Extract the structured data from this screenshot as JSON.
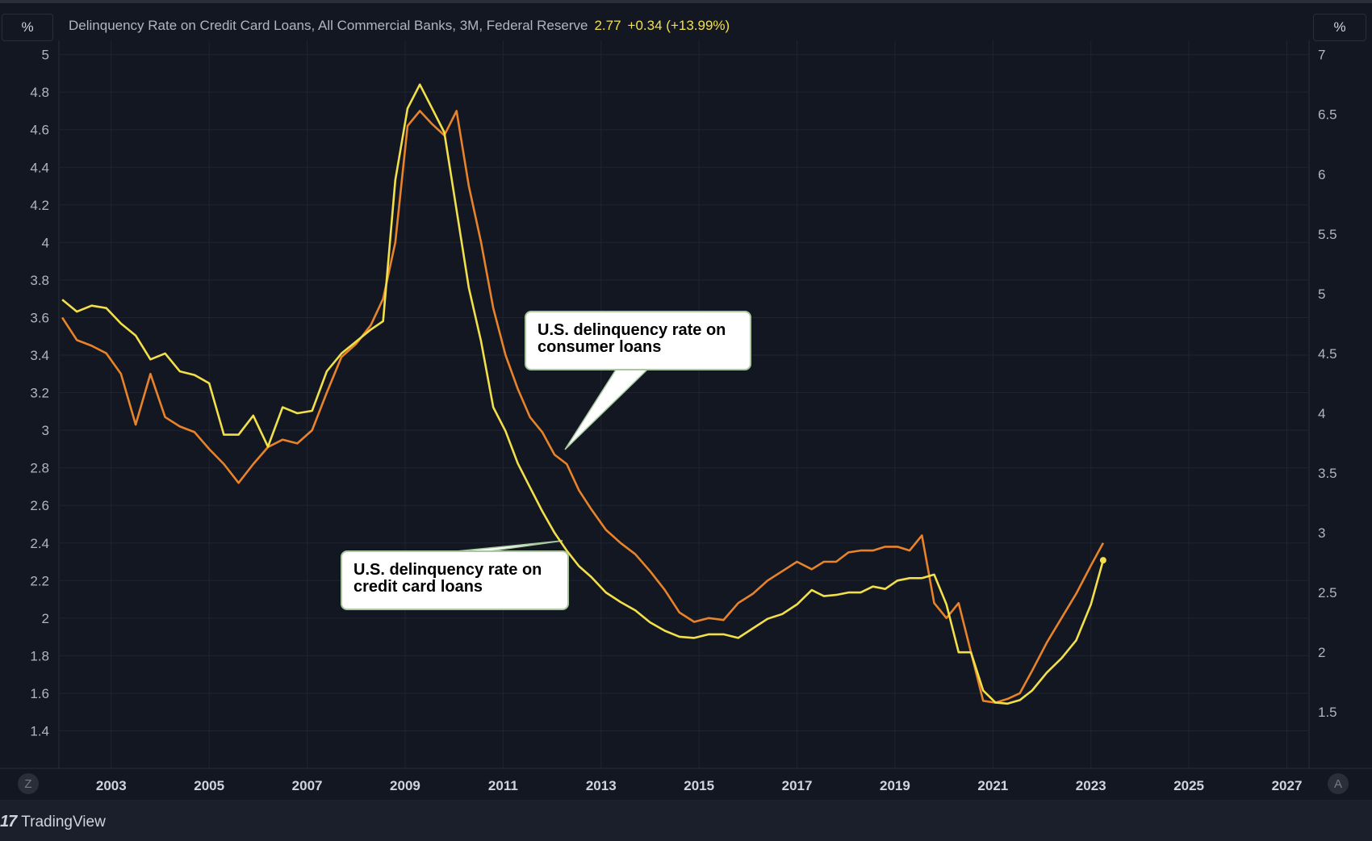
{
  "legend": {
    "series_title": "Delinquency Rate on Credit Card Loans, All Commercial Banks, 3M, Federal Reserve",
    "last_value": "2.77",
    "change": "+0.34 (+13.99%)"
  },
  "axis_units": {
    "left": "%",
    "right": "%"
  },
  "buttons": {
    "z": "Z",
    "a": "A"
  },
  "brand": {
    "logo_text": "17",
    "name": "TradingView"
  },
  "colors": {
    "background": "#131722",
    "grid": "#1f2430",
    "credit_card": "#f2e04a",
    "consumer": "#e8832a",
    "text": "#b2b5be"
  },
  "callouts": {
    "consumer": "U.S. delinquency rate on consumer loans",
    "credit_card": "U.S. delinquency rate on credit card loans"
  },
  "chart_data": {
    "type": "line",
    "title": "Delinquency Rate on Credit Card Loans, All Commercial Banks, 3M, Federal Reserve",
    "x_range": [
      2002,
      2028
    ],
    "x_ticks": [
      2003,
      2005,
      2007,
      2009,
      2011,
      2013,
      2015,
      2017,
      2019,
      2021,
      2023,
      2025,
      2027
    ],
    "left_axis": {
      "unit": "%",
      "range": [
        1.2,
        5.05
      ],
      "ticks": [
        "1.4",
        "1.6",
        "1.8",
        "2",
        "2.2",
        "2.4",
        "2.6",
        "2.8",
        "3",
        "3.2",
        "3.4",
        "3.6",
        "3.8",
        "4",
        "4.2",
        "4.4",
        "4.6",
        "4.8",
        "5"
      ]
    },
    "right_axis": {
      "unit": "%",
      "range": [
        1.0,
        7.0
      ],
      "ticks": [
        "1.5",
        "2",
        "2.5",
        "3",
        "3.5",
        "4",
        "4.5",
        "5",
        "5.5",
        "6",
        "6.5",
        "7"
      ]
    },
    "series": [
      {
        "name": "U.S. delinquency rate on consumer loans",
        "axis": "left",
        "color": "#e8832a",
        "x": [
          2002.0,
          2002.3,
          2002.6,
          2002.9,
          2003.2,
          2003.5,
          2003.8,
          2004.1,
          2004.4,
          2004.7,
          2005.0,
          2005.3,
          2005.6,
          2005.9,
          2006.2,
          2006.5,
          2006.8,
          2007.1,
          2007.4,
          2007.7,
          2008.0,
          2008.3,
          2008.55,
          2008.8,
          2009.05,
          2009.3,
          2009.55,
          2009.8,
          2010.05,
          2010.3,
          2010.55,
          2010.8,
          2011.05,
          2011.3,
          2011.55,
          2011.8,
          2012.05,
          2012.3,
          2012.55,
          2012.8,
          2013.1,
          2013.4,
          2013.7,
          2014.0,
          2014.3,
          2014.6,
          2014.9,
          2015.2,
          2015.5,
          2015.8,
          2016.1,
          2016.4,
          2016.7,
          2017.0,
          2017.3,
          2017.55,
          2017.8,
          2018.05,
          2018.3,
          2018.55,
          2018.8,
          2019.05,
          2019.3,
          2019.55,
          2019.8,
          2020.05,
          2020.3,
          2020.55,
          2020.8,
          2021.05,
          2021.3,
          2021.55,
          2021.8,
          2022.1,
          2022.4,
          2022.7,
          2023.0,
          2023.25
        ],
        "values": [
          3.6,
          3.48,
          3.45,
          3.41,
          3.3,
          3.03,
          3.3,
          3.07,
          3.02,
          2.99,
          2.9,
          2.82,
          2.72,
          2.82,
          2.91,
          2.95,
          2.93,
          3.0,
          3.2,
          3.39,
          3.46,
          3.56,
          3.7,
          4.0,
          4.62,
          4.7,
          4.63,
          4.57,
          4.7,
          4.3,
          4.0,
          3.65,
          3.4,
          3.22,
          3.07,
          2.99,
          2.87,
          2.82,
          2.68,
          2.58,
          2.47,
          2.4,
          2.34,
          2.25,
          2.15,
          2.03,
          1.98,
          2.0,
          1.99,
          2.08,
          2.13,
          2.2,
          2.25,
          2.3,
          2.26,
          2.3,
          2.3,
          2.35,
          2.36,
          2.36,
          2.38,
          2.38,
          2.36,
          2.44,
          2.08,
          2.0,
          2.08,
          1.82,
          1.56,
          1.55,
          1.57,
          1.6,
          1.72,
          1.87,
          2.0,
          2.13,
          2.28,
          2.4
        ]
      },
      {
        "name": "U.S. delinquency rate on credit card loans",
        "axis": "right",
        "color": "#f2e04a",
        "x": [
          2002.0,
          2002.3,
          2002.6,
          2002.9,
          2003.2,
          2003.5,
          2003.8,
          2004.1,
          2004.4,
          2004.7,
          2005.0,
          2005.3,
          2005.6,
          2005.9,
          2006.2,
          2006.5,
          2006.8,
          2007.1,
          2007.4,
          2007.7,
          2008.0,
          2008.3,
          2008.55,
          2008.8,
          2009.05,
          2009.3,
          2009.55,
          2009.8,
          2010.05,
          2010.3,
          2010.55,
          2010.8,
          2011.05,
          2011.3,
          2011.55,
          2011.8,
          2012.05,
          2012.3,
          2012.55,
          2012.8,
          2013.1,
          2013.4,
          2013.7,
          2014.0,
          2014.3,
          2014.6,
          2014.9,
          2015.2,
          2015.5,
          2015.8,
          2016.1,
          2016.4,
          2016.7,
          2017.0,
          2017.3,
          2017.55,
          2017.8,
          2018.05,
          2018.3,
          2018.55,
          2018.8,
          2019.05,
          2019.3,
          2019.55,
          2019.8,
          2020.05,
          2020.3,
          2020.55,
          2020.8,
          2021.05,
          2021.3,
          2021.55,
          2021.8,
          2022.1,
          2022.4,
          2022.7,
          2023.0,
          2023.25
        ],
        "values": [
          4.95,
          4.85,
          4.9,
          4.88,
          4.75,
          4.65,
          4.45,
          4.5,
          4.35,
          4.32,
          4.25,
          3.82,
          3.82,
          3.98,
          3.72,
          4.05,
          4.0,
          4.02,
          4.35,
          4.5,
          4.6,
          4.7,
          4.77,
          5.95,
          6.55,
          6.75,
          6.55,
          6.35,
          5.7,
          5.05,
          4.6,
          4.05,
          3.85,
          3.58,
          3.38,
          3.18,
          3.0,
          2.85,
          2.72,
          2.63,
          2.5,
          2.42,
          2.35,
          2.25,
          2.18,
          2.13,
          2.12,
          2.15,
          2.15,
          2.12,
          2.2,
          2.28,
          2.32,
          2.4,
          2.52,
          2.47,
          2.48,
          2.5,
          2.5,
          2.55,
          2.53,
          2.6,
          2.62,
          2.62,
          2.65,
          2.4,
          2.0,
          2.0,
          1.68,
          1.58,
          1.57,
          1.6,
          1.68,
          1.83,
          1.95,
          2.1,
          2.4,
          2.77
        ]
      }
    ]
  }
}
